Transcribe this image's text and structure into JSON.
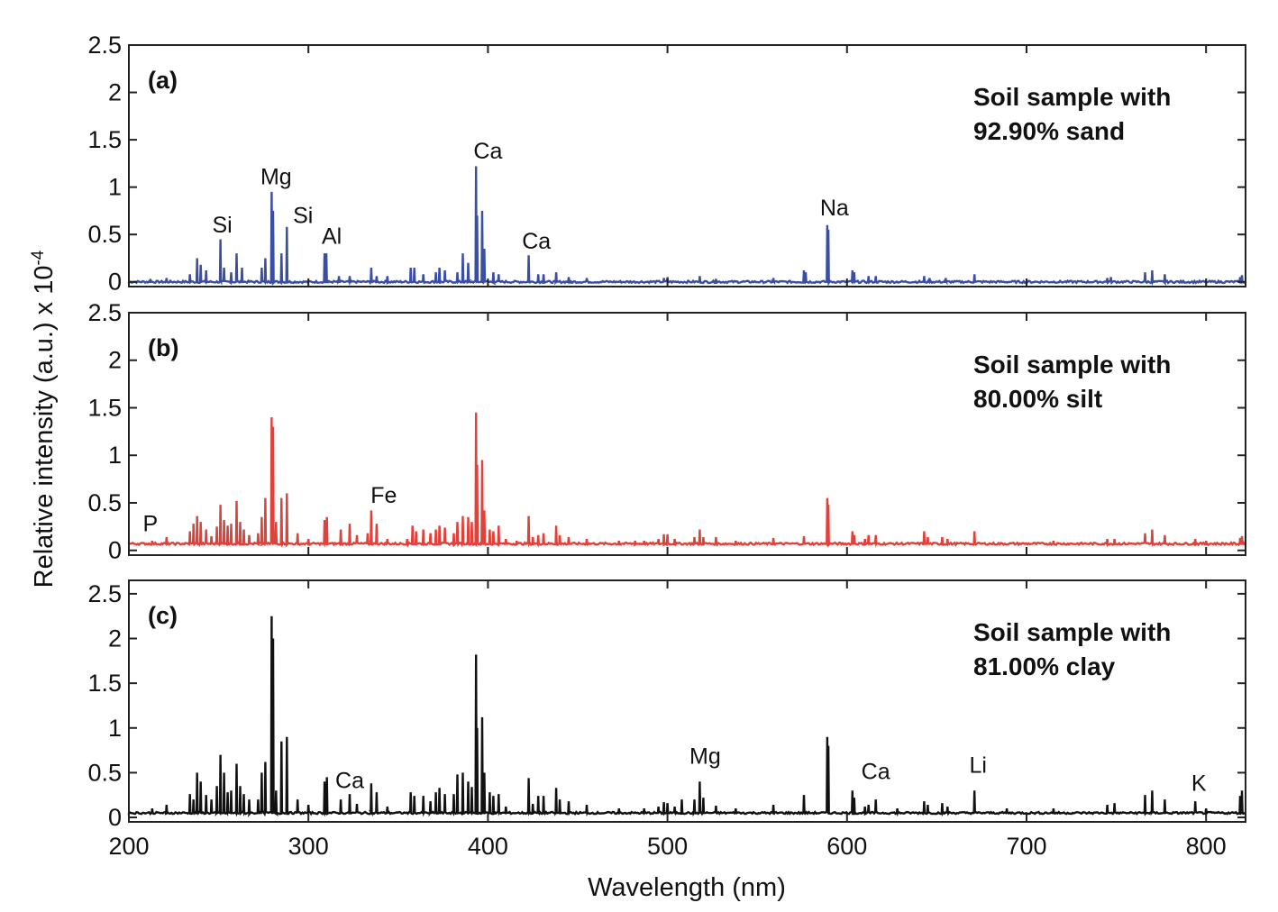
{
  "chart_data": {
    "type": "line",
    "ylabel": "Relative intensity (a.u.) x 10",
    "ylabel_exponent": "-4",
    "xlabel": "Wavelength (nm)",
    "xlim": [
      200,
      822
    ],
    "x_ticks": [
      200,
      300,
      400,
      500,
      600,
      700,
      800
    ],
    "panels": [
      {
        "tag": "(a)",
        "sample_line1": "Soil sample with",
        "sample_line2": "92.90% sand",
        "color": "#3a4fa3",
        "ylim": [
          -0.05,
          2.5
        ],
        "y_ticks": [
          {
            "v": 0,
            "t": "0"
          },
          {
            "v": 0.5,
            "t": "0.5"
          },
          {
            "v": 1,
            "t": "1"
          },
          {
            "v": 1.5,
            "t": "1.5"
          },
          {
            "v": 2,
            "t": "2"
          },
          {
            "v": 2.5,
            "t": "2.5"
          }
        ],
        "baseline": 0.0,
        "peaks": [
          [
            212,
            0.03
          ],
          [
            221,
            0.04
          ],
          [
            234,
            0.08
          ],
          [
            238,
            0.25
          ],
          [
            240,
            0.18
          ],
          [
            243,
            0.12
          ],
          [
            251,
            0.45
          ],
          [
            253,
            0.15
          ],
          [
            257,
            0.1
          ],
          [
            260,
            0.3
          ],
          [
            263,
            0.15
          ],
          [
            274,
            0.15
          ],
          [
            276,
            0.25
          ],
          [
            279.5,
            0.95
          ],
          [
            280.3,
            0.75
          ],
          [
            285,
            0.3
          ],
          [
            288,
            0.58
          ],
          [
            309,
            0.3
          ],
          [
            310,
            0.3
          ],
          [
            317,
            0.06
          ],
          [
            323,
            0.06
          ],
          [
            335,
            0.15
          ],
          [
            338,
            0.06
          ],
          [
            344,
            0.06
          ],
          [
            357,
            0.15
          ],
          [
            359,
            0.15
          ],
          [
            364,
            0.08
          ],
          [
            371,
            0.1
          ],
          [
            373,
            0.15
          ],
          [
            376,
            0.12
          ],
          [
            383,
            0.1
          ],
          [
            386,
            0.3
          ],
          [
            389,
            0.2
          ],
          [
            393.4,
            1.22
          ],
          [
            394,
            0.7
          ],
          [
            396.8,
            0.75
          ],
          [
            398,
            0.35
          ],
          [
            403,
            0.1
          ],
          [
            406,
            0.08
          ],
          [
            422.7,
            0.28
          ],
          [
            428,
            0.08
          ],
          [
            431,
            0.08
          ],
          [
            438,
            0.1
          ],
          [
            445,
            0.05
          ],
          [
            455,
            0.04
          ],
          [
            498,
            0.04
          ],
          [
            500,
            0.05
          ],
          [
            518,
            0.06
          ],
          [
            527,
            0.03
          ],
          [
            559,
            0.04
          ],
          [
            576,
            0.12
          ],
          [
            577,
            0.1
          ],
          [
            589,
            0.6
          ],
          [
            589.6,
            0.55
          ],
          [
            603,
            0.12
          ],
          [
            604,
            0.1
          ],
          [
            612,
            0.06
          ],
          [
            616,
            0.06
          ],
          [
            643,
            0.06
          ],
          [
            646,
            0.04
          ],
          [
            655,
            0.04
          ],
          [
            671,
            0.08
          ],
          [
            745,
            0.04
          ],
          [
            747,
            0.05
          ],
          [
            766,
            0.1
          ],
          [
            770,
            0.12
          ],
          [
            777,
            0.08
          ],
          [
            819,
            0.05
          ],
          [
            820,
            0.07
          ]
        ],
        "labels": [
          {
            "text": "Si",
            "x": 252,
            "y": 0.52
          },
          {
            "text": "Mg",
            "x": 282,
            "y": 1.03
          },
          {
            "text": "Si",
            "x": 297,
            "y": 0.62
          },
          {
            "text": "Al",
            "x": 313,
            "y": 0.4
          },
          {
            "text": "Ca",
            "x": 400,
            "y": 1.3
          },
          {
            "text": "Ca",
            "x": 427,
            "y": 0.35
          },
          {
            "text": "Na",
            "x": 593,
            "y": 0.7
          }
        ]
      },
      {
        "tag": "(b)",
        "sample_line1": "Soil sample with",
        "sample_line2": "80.00% silt",
        "color": "#e0413a",
        "ylim": [
          -0.05,
          2.5
        ],
        "y_ticks": [
          {
            "v": 0,
            "t": "0"
          },
          {
            "v": 0.5,
            "t": "0.5"
          },
          {
            "v": 1,
            "t": "1"
          },
          {
            "v": 1.5,
            "t": "1.5"
          },
          {
            "v": 2,
            "t": "2"
          },
          {
            "v": 2.5,
            "t": "2.5"
          }
        ],
        "baseline": 0.07,
        "peaks": [
          [
            213,
            0.1
          ],
          [
            221,
            0.14
          ],
          [
            234,
            0.2
          ],
          [
            236,
            0.28
          ],
          [
            238,
            0.36
          ],
          [
            240,
            0.3
          ],
          [
            243,
            0.22
          ],
          [
            246,
            0.15
          ],
          [
            249,
            0.25
          ],
          [
            251,
            0.48
          ],
          [
            253,
            0.32
          ],
          [
            255,
            0.26
          ],
          [
            257,
            0.28
          ],
          [
            260,
            0.52
          ],
          [
            262,
            0.3
          ],
          [
            264,
            0.22
          ],
          [
            267,
            0.16
          ],
          [
            272,
            0.18
          ],
          [
            274,
            0.35
          ],
          [
            276,
            0.55
          ],
          [
            279.5,
            1.4
          ],
          [
            280.3,
            1.3
          ],
          [
            282,
            0.3
          ],
          [
            285,
            0.55
          ],
          [
            288,
            0.6
          ],
          [
            294,
            0.18
          ],
          [
            300,
            0.12
          ],
          [
            309,
            0.32
          ],
          [
            310.3,
            0.35
          ],
          [
            318,
            0.22
          ],
          [
            323,
            0.28
          ],
          [
            327,
            0.16
          ],
          [
            333,
            0.18
          ],
          [
            335,
            0.42
          ],
          [
            338,
            0.28
          ],
          [
            344,
            0.12
          ],
          [
            355,
            0.12
          ],
          [
            358,
            0.26
          ],
          [
            360,
            0.2
          ],
          [
            364,
            0.22
          ],
          [
            368,
            0.18
          ],
          [
            371,
            0.22
          ],
          [
            373,
            0.26
          ],
          [
            376,
            0.24
          ],
          [
            381,
            0.18
          ],
          [
            383,
            0.3
          ],
          [
            386,
            0.36
          ],
          [
            389,
            0.35
          ],
          [
            391,
            0.3
          ],
          [
            393.4,
            1.45
          ],
          [
            394,
            0.9
          ],
          [
            396.8,
            0.95
          ],
          [
            398,
            0.42
          ],
          [
            401,
            0.22
          ],
          [
            403,
            0.2
          ],
          [
            406,
            0.26
          ],
          [
            410,
            0.12
          ],
          [
            416,
            0.1
          ],
          [
            422.7,
            0.36
          ],
          [
            425,
            0.14
          ],
          [
            428,
            0.16
          ],
          [
            431,
            0.18
          ],
          [
            438,
            0.26
          ],
          [
            440,
            0.16
          ],
          [
            445,
            0.14
          ],
          [
            455,
            0.12
          ],
          [
            473,
            0.1
          ],
          [
            482,
            0.1
          ],
          [
            487,
            0.1
          ],
          [
            495,
            0.12
          ],
          [
            498,
            0.17
          ],
          [
            500,
            0.17
          ],
          [
            504,
            0.12
          ],
          [
            515,
            0.14
          ],
          [
            518,
            0.22
          ],
          [
            520,
            0.14
          ],
          [
            527,
            0.14
          ],
          [
            538,
            0.1
          ],
          [
            559,
            0.13
          ],
          [
            576,
            0.15
          ],
          [
            589,
            0.55
          ],
          [
            589.6,
            0.48
          ],
          [
            603,
            0.2
          ],
          [
            604,
            0.16
          ],
          [
            610,
            0.12
          ],
          [
            612,
            0.16
          ],
          [
            616,
            0.16
          ],
          [
            643,
            0.2
          ],
          [
            645,
            0.14
          ],
          [
            653,
            0.14
          ],
          [
            656,
            0.12
          ],
          [
            671,
            0.2
          ],
          [
            715,
            0.1
          ],
          [
            745,
            0.12
          ],
          [
            749,
            0.12
          ],
          [
            766,
            0.18
          ],
          [
            770,
            0.22
          ],
          [
            777,
            0.16
          ],
          [
            794,
            0.12
          ],
          [
            800,
            0.1
          ],
          [
            819,
            0.13
          ],
          [
            820,
            0.15
          ]
        ],
        "labels": [
          {
            "text": "P",
            "x": 212,
            "y": 0.2
          },
          {
            "text": "Fe",
            "x": 342,
            "y": 0.5
          }
        ]
      },
      {
        "tag": "(c)",
        "sample_line1": "Soil sample with",
        "sample_line2": "81.00% clay",
        "color": "#111111",
        "ylim": [
          -0.05,
          2.65
        ],
        "y_ticks": [
          {
            "v": 0,
            "t": "0"
          },
          {
            "v": 0.5,
            "t": "0.5"
          },
          {
            "v": 1,
            "t": "1"
          },
          {
            "v": 1.5,
            "t": "1.5"
          },
          {
            "v": 2,
            "t": "2"
          },
          {
            "v": 2.5,
            "t": "2.5"
          }
        ],
        "baseline": 0.05,
        "peaks": [
          [
            213,
            0.1
          ],
          [
            221,
            0.14
          ],
          [
            234,
            0.26
          ],
          [
            236,
            0.2
          ],
          [
            238,
            0.5
          ],
          [
            240,
            0.4
          ],
          [
            243,
            0.25
          ],
          [
            246,
            0.2
          ],
          [
            249,
            0.35
          ],
          [
            251,
            0.7
          ],
          [
            253,
            0.5
          ],
          [
            255,
            0.28
          ],
          [
            257,
            0.3
          ],
          [
            260,
            0.6
          ],
          [
            262,
            0.35
          ],
          [
            264,
            0.26
          ],
          [
            267,
            0.2
          ],
          [
            272,
            0.2
          ],
          [
            274,
            0.5
          ],
          [
            276,
            0.62
          ],
          [
            279.5,
            2.25
          ],
          [
            280.3,
            2.0
          ],
          [
            282,
            0.3
          ],
          [
            285,
            0.85
          ],
          [
            288,
            0.9
          ],
          [
            294,
            0.2
          ],
          [
            300,
            0.14
          ],
          [
            309,
            0.4
          ],
          [
            310.3,
            0.45
          ],
          [
            318,
            0.2
          ],
          [
            323,
            0.26
          ],
          [
            327,
            0.15
          ],
          [
            335,
            0.38
          ],
          [
            338,
            0.28
          ],
          [
            344,
            0.12
          ],
          [
            357,
            0.28
          ],
          [
            359,
            0.24
          ],
          [
            364,
            0.24
          ],
          [
            368,
            0.18
          ],
          [
            371,
            0.28
          ],
          [
            373,
            0.33
          ],
          [
            376,
            0.26
          ],
          [
            381,
            0.26
          ],
          [
            383,
            0.48
          ],
          [
            386,
            0.5
          ],
          [
            389,
            0.4
          ],
          [
            391,
            0.34
          ],
          [
            393.4,
            1.82
          ],
          [
            394,
            1.0
          ],
          [
            396.8,
            1.12
          ],
          [
            398,
            0.5
          ],
          [
            401,
            0.28
          ],
          [
            403,
            0.24
          ],
          [
            406,
            0.26
          ],
          [
            410,
            0.12
          ],
          [
            422.7,
            0.44
          ],
          [
            425,
            0.15
          ],
          [
            428,
            0.24
          ],
          [
            431,
            0.24
          ],
          [
            438,
            0.33
          ],
          [
            440,
            0.2
          ],
          [
            445,
            0.18
          ],
          [
            455,
            0.14
          ],
          [
            473,
            0.1
          ],
          [
            487,
            0.1
          ],
          [
            495,
            0.12
          ],
          [
            498,
            0.17
          ],
          [
            500,
            0.16
          ],
          [
            504,
            0.12
          ],
          [
            508,
            0.2
          ],
          [
            515,
            0.2
          ],
          [
            518,
            0.4
          ],
          [
            520,
            0.22
          ],
          [
            527,
            0.13
          ],
          [
            538,
            0.1
          ],
          [
            559,
            0.14
          ],
          [
            576,
            0.25
          ],
          [
            589,
            0.9
          ],
          [
            589.6,
            0.8
          ],
          [
            603,
            0.3
          ],
          [
            604,
            0.22
          ],
          [
            610,
            0.12
          ],
          [
            612,
            0.14
          ],
          [
            616,
            0.2
          ],
          [
            628,
            0.1
          ],
          [
            643,
            0.18
          ],
          [
            645,
            0.14
          ],
          [
            653,
            0.16
          ],
          [
            656,
            0.12
          ],
          [
            671,
            0.3
          ],
          [
            689,
            0.1
          ],
          [
            715,
            0.1
          ],
          [
            745,
            0.14
          ],
          [
            749,
            0.16
          ],
          [
            766,
            0.25
          ],
          [
            770,
            0.3
          ],
          [
            777,
            0.2
          ],
          [
            794,
            0.18
          ],
          [
            800,
            0.1
          ],
          [
            819,
            0.24
          ],
          [
            820,
            0.3
          ]
        ],
        "labels": [
          {
            "text": "Ca",
            "x": 323,
            "y": 0.33
          },
          {
            "text": "Mg",
            "x": 521,
            "y": 0.6
          },
          {
            "text": "Ca",
            "x": 616,
            "y": 0.43
          },
          {
            "text": "Li",
            "x": 673,
            "y": 0.5
          },
          {
            "text": "K",
            "x": 796,
            "y": 0.3
          }
        ]
      }
    ]
  }
}
